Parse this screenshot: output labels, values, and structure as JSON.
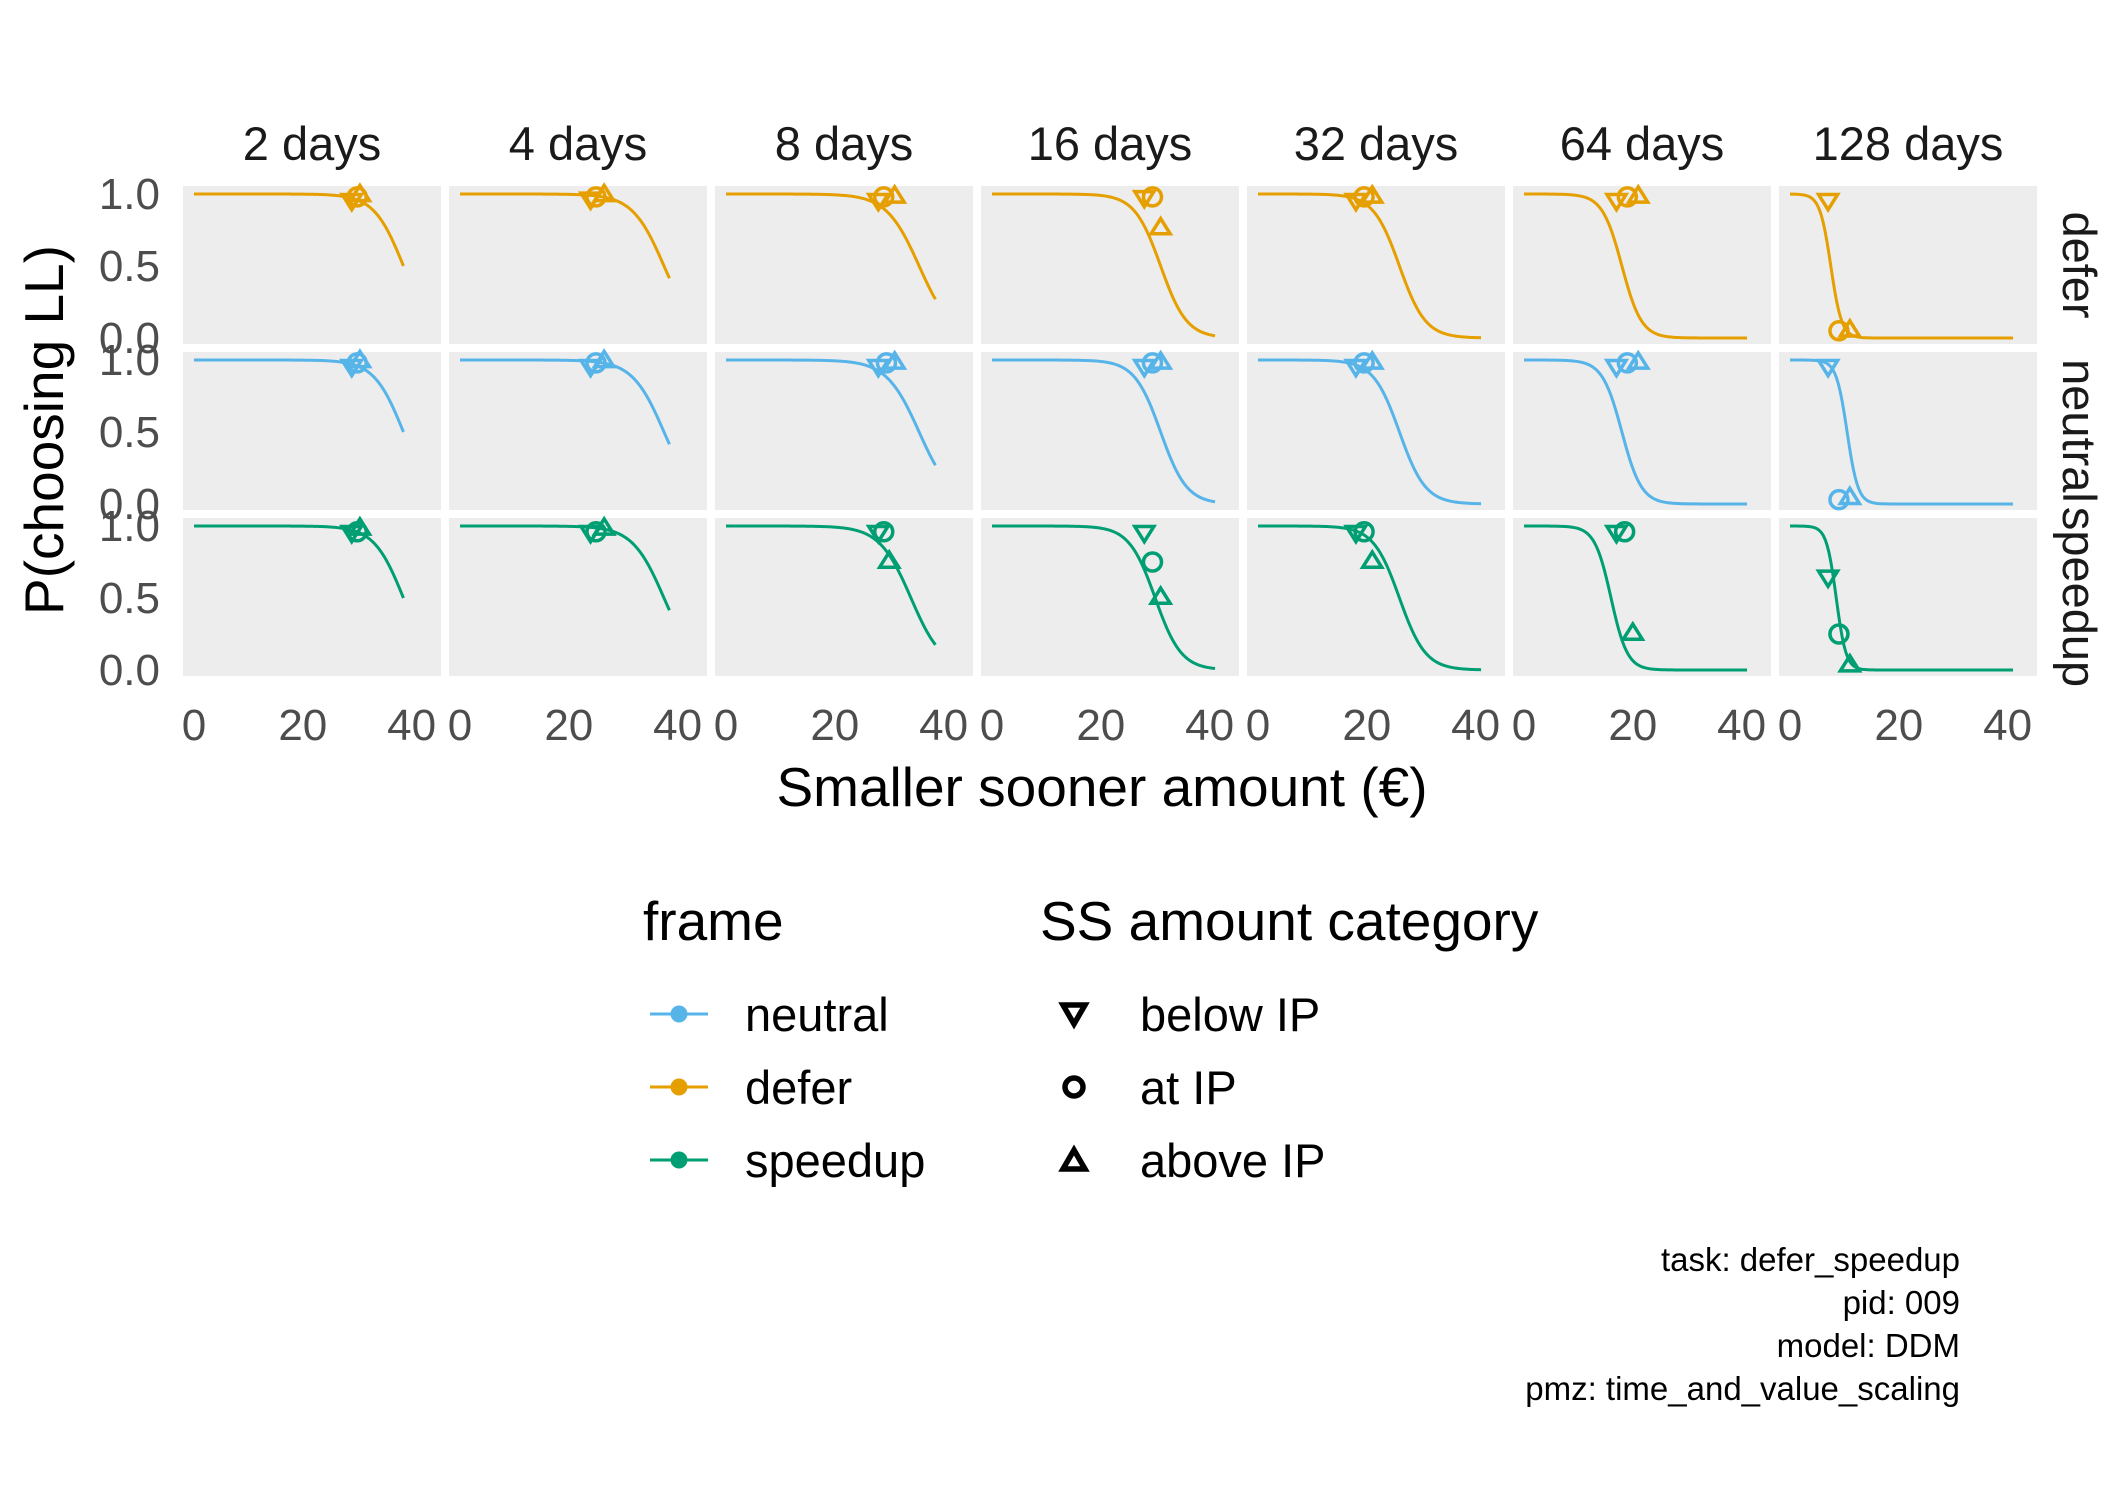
{
  "chart_data": {
    "type": "line",
    "facet_columns": [
      "2 days",
      "4 days",
      "8 days",
      "16 days",
      "32 days",
      "64 days",
      "128 days"
    ],
    "facet_rows": [
      "defer",
      "neutral",
      "speedup"
    ],
    "xlabel": "Smaller sooner amount (€)",
    "ylabel": "P(choosing LL)",
    "xlim": [
      0,
      40
    ],
    "ylim": [
      0,
      1
    ],
    "x_ticks": [
      0,
      20,
      40
    ],
    "y_ticks": [
      "0.0",
      "0.5",
      "1.0"
    ],
    "grid": false,
    "legend_placement": "bottom",
    "colors": {
      "neutral": "#56B4E9",
      "defer": "#E69F00",
      "speedup": "#009E73"
    },
    "panel_background": "#ededed",
    "legends": {
      "frame": {
        "title": "frame",
        "items": [
          {
            "label": "neutral",
            "color": "#56B4E9"
          },
          {
            "label": "defer",
            "color": "#E69F00"
          },
          {
            "label": "speedup",
            "color": "#009E73"
          }
        ]
      },
      "category": {
        "title": "SS amount category",
        "items": [
          {
            "label": "below IP",
            "shape": "triangle-down"
          },
          {
            "label": "at IP",
            "shape": "circle"
          },
          {
            "label": "above IP",
            "shape": "triangle-up"
          }
        ]
      }
    },
    "curves": {
      "defer": [
        {
          "x0": 38.5,
          "s": 2.7,
          "xmax": 38.5
        },
        {
          "x0": 37.5,
          "s": 2.9,
          "xmax": 38.5
        },
        {
          "x0": 35.5,
          "s": 3.0,
          "xmax": 38.5
        },
        {
          "x0": 31.0,
          "s": 2.4,
          "xmax": 41
        },
        {
          "x0": 26.0,
          "s": 2.4,
          "xmax": 41
        },
        {
          "x0": 18.0,
          "s": 1.8,
          "xmax": 41
        },
        {
          "x0": 7.5,
          "s": 1.0,
          "xmax": 41
        }
      ],
      "neutral": [
        {
          "x0": 38.5,
          "s": 2.7,
          "xmax": 38.5
        },
        {
          "x0": 37.5,
          "s": 2.9,
          "xmax": 38.5
        },
        {
          "x0": 35.5,
          "s": 3.0,
          "xmax": 38.5
        },
        {
          "x0": 31.0,
          "s": 2.4,
          "xmax": 41
        },
        {
          "x0": 26.0,
          "s": 2.4,
          "xmax": 41
        },
        {
          "x0": 18.0,
          "s": 1.8,
          "xmax": 41
        },
        {
          "x0": 10.5,
          "s": 1.0,
          "xmax": 41
        }
      ],
      "speedup": [
        {
          "x0": 38.5,
          "s": 2.7,
          "xmax": 38.5
        },
        {
          "x0": 37.5,
          "s": 2.9,
          "xmax": 38.5
        },
        {
          "x0": 34.0,
          "s": 2.9,
          "xmax": 38.5
        },
        {
          "x0": 30.0,
          "s": 2.4,
          "xmax": 41
        },
        {
          "x0": 26.0,
          "s": 2.4,
          "xmax": 41
        },
        {
          "x0": 16.0,
          "s": 1.5,
          "xmax": 41
        },
        {
          "x0": 8.5,
          "s": 0.9,
          "xmax": 41
        }
      ]
    },
    "points": {
      "defer": [
        [
          {
            "cat": "below",
            "x": 29,
            "y": 0.96
          },
          {
            "cat": "at",
            "x": 30,
            "y": 0.98
          },
          {
            "cat": "above",
            "x": 30.5,
            "y": 0.99
          }
        ],
        [
          {
            "cat": "below",
            "x": 24,
            "y": 0.97
          },
          {
            "cat": "at",
            "x": 25,
            "y": 0.98
          },
          {
            "cat": "above",
            "x": 26.5,
            "y": 0.99
          }
        ],
        [
          {
            "cat": "below",
            "x": 28,
            "y": 0.96
          },
          {
            "cat": "at",
            "x": 29,
            "y": 0.98
          },
          {
            "cat": "above",
            "x": 31,
            "y": 0.98
          }
        ],
        [
          {
            "cat": "below",
            "x": 28,
            "y": 0.98
          },
          {
            "cat": "at",
            "x": 29.5,
            "y": 0.98
          },
          {
            "cat": "above",
            "x": 31,
            "y": 0.76
          }
        ],
        [
          {
            "cat": "below",
            "x": 18,
            "y": 0.96
          },
          {
            "cat": "at",
            "x": 19.5,
            "y": 0.98
          },
          {
            "cat": "above",
            "x": 21,
            "y": 0.98
          }
        ],
        [
          {
            "cat": "below",
            "x": 17,
            "y": 0.96
          },
          {
            "cat": "at",
            "x": 19,
            "y": 0.98
          },
          {
            "cat": "above",
            "x": 21,
            "y": 0.98
          }
        ],
        [
          {
            "cat": "below",
            "x": 7,
            "y": 0.96
          },
          {
            "cat": "at",
            "x": 9,
            "y": 0.05
          },
          {
            "cat": "above",
            "x": 11,
            "y": 0.05
          }
        ]
      ],
      "neutral": [
        [
          {
            "cat": "below",
            "x": 29,
            "y": 0.96
          },
          {
            "cat": "at",
            "x": 30,
            "y": 0.98
          },
          {
            "cat": "above",
            "x": 30.5,
            "y": 0.99
          }
        ],
        [
          {
            "cat": "below",
            "x": 24,
            "y": 0.96
          },
          {
            "cat": "at",
            "x": 25,
            "y": 0.98
          },
          {
            "cat": "above",
            "x": 26.5,
            "y": 0.99
          }
        ],
        [
          {
            "cat": "below",
            "x": 28,
            "y": 0.96
          },
          {
            "cat": "at",
            "x": 29.5,
            "y": 0.98
          },
          {
            "cat": "above",
            "x": 31,
            "y": 0.98
          }
        ],
        [
          {
            "cat": "below",
            "x": 28,
            "y": 0.96
          },
          {
            "cat": "at",
            "x": 29.5,
            "y": 0.98
          },
          {
            "cat": "above",
            "x": 31,
            "y": 0.98
          }
        ],
        [
          {
            "cat": "below",
            "x": 18,
            "y": 0.96
          },
          {
            "cat": "at",
            "x": 19.5,
            "y": 0.98
          },
          {
            "cat": "above",
            "x": 21,
            "y": 0.98
          }
        ],
        [
          {
            "cat": "below",
            "x": 17,
            "y": 0.96
          },
          {
            "cat": "at",
            "x": 19,
            "y": 0.98
          },
          {
            "cat": "above",
            "x": 21,
            "y": 0.98
          }
        ],
        [
          {
            "cat": "below",
            "x": 7,
            "y": 0.96
          },
          {
            "cat": "at",
            "x": 9,
            "y": 0.03
          },
          {
            "cat": "above",
            "x": 11,
            "y": 0.04
          }
        ]
      ],
      "speedup": [
        [
          {
            "cat": "below",
            "x": 29,
            "y": 0.96
          },
          {
            "cat": "at",
            "x": 30,
            "y": 0.96
          },
          {
            "cat": "above",
            "x": 30.5,
            "y": 0.98
          }
        ],
        [
          {
            "cat": "below",
            "x": 24,
            "y": 0.96
          },
          {
            "cat": "at",
            "x": 25,
            "y": 0.96
          },
          {
            "cat": "above",
            "x": 26.5,
            "y": 0.98
          }
        ],
        [
          {
            "cat": "below",
            "x": 28,
            "y": 0.96
          },
          {
            "cat": "at",
            "x": 29,
            "y": 0.96
          },
          {
            "cat": "above",
            "x": 30,
            "y": 0.75
          }
        ],
        [
          {
            "cat": "below",
            "x": 28,
            "y": 0.96
          },
          {
            "cat": "at",
            "x": 29.5,
            "y": 0.75
          },
          {
            "cat": "above",
            "x": 31,
            "y": 0.5
          }
        ],
        [
          {
            "cat": "below",
            "x": 18,
            "y": 0.96
          },
          {
            "cat": "at",
            "x": 19.5,
            "y": 0.96
          },
          {
            "cat": "above",
            "x": 21,
            "y": 0.75
          }
        ],
        [
          {
            "cat": "below",
            "x": 17,
            "y": 0.96
          },
          {
            "cat": "at",
            "x": 18.5,
            "y": 0.96
          },
          {
            "cat": "above",
            "x": 20,
            "y": 0.25
          }
        ],
        [
          {
            "cat": "below",
            "x": 7,
            "y": 0.65
          },
          {
            "cat": "at",
            "x": 9,
            "y": 0.25
          },
          {
            "cat": "above",
            "x": 11,
            "y": 0.03
          }
        ]
      ]
    }
  },
  "caption": {
    "task": "task: defer_speedup",
    "pid": "pid: 009",
    "model": "model: DDM",
    "pmz": "pmz: time_and_value_scaling"
  }
}
